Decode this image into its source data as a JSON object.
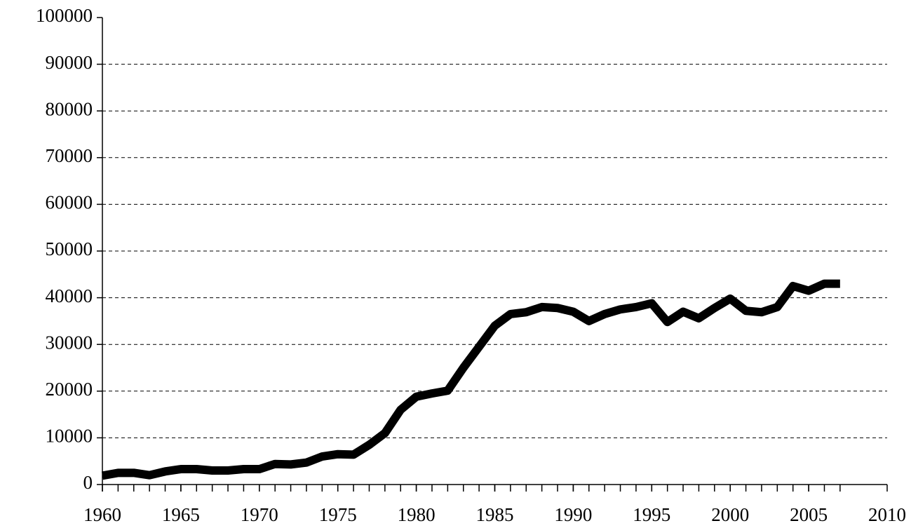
{
  "chart_data": {
    "type": "line",
    "x": [
      1960,
      1961,
      1962,
      1963,
      1964,
      1965,
      1966,
      1967,
      1968,
      1969,
      1970,
      1971,
      1972,
      1973,
      1974,
      1975,
      1976,
      1977,
      1978,
      1979,
      1980,
      1981,
      1982,
      1983,
      1984,
      1985,
      1986,
      1987,
      1988,
      1989,
      1990,
      1991,
      1992,
      1993,
      1994,
      1995,
      1996,
      1997,
      1998,
      1999,
      2000,
      2001,
      2002,
      2003,
      2004,
      2005,
      2006,
      2007
    ],
    "series": [
      {
        "color": "#000000",
        "values": [
          1900,
          2500,
          2500,
          2000,
          2800,
          3300,
          3300,
          3000,
          3000,
          3300,
          3300,
          4400,
          4300,
          4700,
          6000,
          6500,
          6400,
          8500,
          11000,
          16000,
          18800,
          19500,
          20100,
          25000,
          29500,
          34000,
          36500,
          36900,
          38000,
          37800,
          37000,
          35000,
          36500,
          37500,
          38000,
          38800,
          34800,
          37000,
          35600,
          37800,
          39800,
          37200,
          36900,
          38000,
          42500,
          41500,
          43000,
          43000
        ]
      }
    ],
    "xlim": [
      1960,
      2010
    ],
    "xticks": [
      1960,
      1965,
      1970,
      1975,
      1980,
      1985,
      1990,
      1995,
      2000,
      2005,
      2010
    ],
    "ylim": [
      0,
      100000
    ],
    "yticks": [
      0,
      10000,
      20000,
      30000,
      40000,
      50000,
      60000,
      70000,
      80000,
      90000,
      100000
    ],
    "grid": true
  }
}
